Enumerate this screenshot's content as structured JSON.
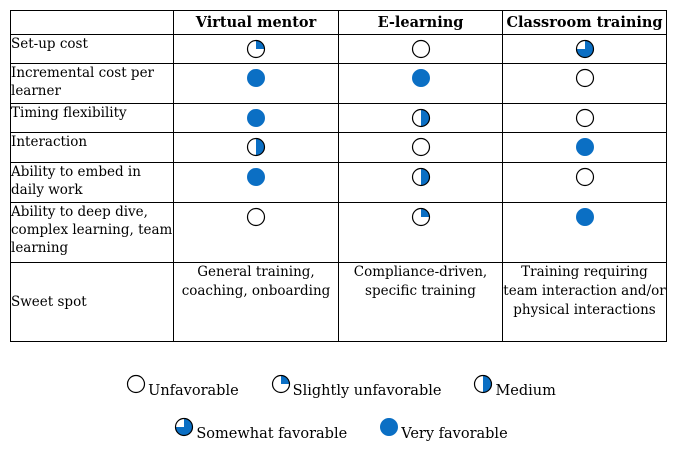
{
  "table": {
    "columns": [
      "",
      "Virtual mentor",
      "E-learning",
      "Classroom training"
    ],
    "rows": [
      {
        "label": "Set-up cost",
        "ratings": [
          "slightly_unfavorable",
          "unfavorable",
          "somewhat_favorable"
        ]
      },
      {
        "label": "Incremental cost per learner",
        "ratings": [
          "very_favorable",
          "very_favorable",
          "unfavorable"
        ]
      },
      {
        "label": "Timing flexibility",
        "ratings": [
          "very_favorable",
          "medium",
          "unfavorable"
        ]
      },
      {
        "label": "Interaction",
        "ratings": [
          "medium",
          "unfavorable",
          "very_favorable"
        ]
      },
      {
        "label": "Ability to embed in daily work",
        "ratings": [
          "very_favorable",
          "medium",
          "unfavorable"
        ]
      },
      {
        "label": "Ability to deep dive, complex learning, team learning",
        "ratings": [
          "unfavorable",
          "slightly_unfavorable",
          "very_favorable"
        ]
      }
    ],
    "sweet_spot": {
      "label": "Sweet spot",
      "values": [
        "General training, coaching, onboarding",
        "Compliance-driven, specific training",
        "Training requiring team interaction and/or physical interactions"
      ]
    }
  },
  "legend": {
    "row1": [
      {
        "key": "unfavorable",
        "label": "Unfavorable"
      },
      {
        "key": "slightly_unfavorable",
        "label": "Slightly unfavorable"
      },
      {
        "key": "medium",
        "label": "Medium"
      }
    ],
    "row2": [
      {
        "key": "somewhat_favorable",
        "label": "Somewhat favorable"
      },
      {
        "key": "very_favorable",
        "label": "Very favorable"
      }
    ]
  },
  "rating_fill_fraction": {
    "unfavorable": 0,
    "slightly_unfavorable": 0.25,
    "medium": 0.5,
    "somewhat_favorable": 0.75,
    "very_favorable": 1
  },
  "colors": {
    "fill": "#0b6fc4",
    "border": "#000000"
  }
}
